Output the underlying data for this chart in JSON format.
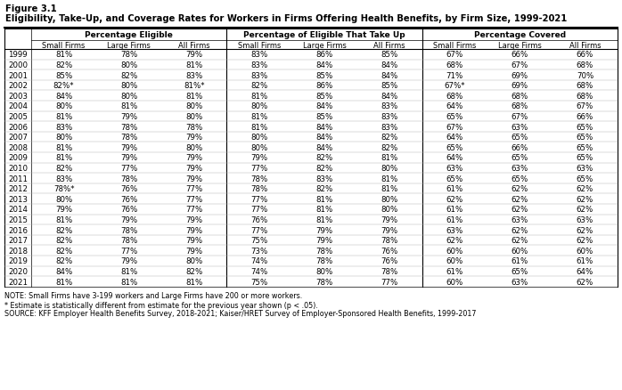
{
  "figure_label": "Figure 3.1",
  "title": "Eligibility, Take-Up, and Coverage Rates for Workers in Firms Offering Health Benefits, by Firm Size, 1999-2021",
  "years": [
    1999,
    2000,
    2001,
    2002,
    2003,
    2004,
    2005,
    2006,
    2007,
    2008,
    2009,
    2010,
    2011,
    2012,
    2013,
    2014,
    2015,
    2016,
    2017,
    2018,
    2019,
    2020,
    2021
  ],
  "data": {
    "eligible_small": [
      "81%",
      "82%",
      "85%",
      "82%*",
      "84%",
      "80%",
      "81%",
      "83%",
      "80%",
      "81%",
      "81%",
      "82%",
      "83%",
      "78%*",
      "80%",
      "79%",
      "81%",
      "82%",
      "82%",
      "82%",
      "82%",
      "84%",
      "81%"
    ],
    "eligible_large": [
      "78%",
      "80%",
      "82%",
      "80%",
      "80%",
      "81%",
      "79%",
      "78%",
      "78%",
      "79%",
      "79%",
      "77%",
      "78%",
      "76%",
      "76%",
      "76%",
      "79%",
      "78%",
      "78%",
      "77%",
      "79%",
      "81%",
      "81%"
    ],
    "eligible_all": [
      "79%",
      "81%",
      "83%",
      "81%*",
      "81%",
      "80%",
      "80%",
      "78%",
      "79%",
      "80%",
      "79%",
      "79%",
      "79%",
      "77%",
      "77%",
      "77%",
      "79%",
      "79%",
      "79%",
      "79%",
      "80%",
      "82%",
      "81%"
    ],
    "takeup_small": [
      "83%",
      "83%",
      "83%",
      "82%",
      "81%",
      "80%",
      "81%",
      "81%",
      "80%",
      "80%",
      "79%",
      "77%",
      "78%",
      "78%",
      "77%",
      "77%",
      "76%",
      "77%",
      "75%",
      "73%",
      "74%",
      "74%",
      "75%"
    ],
    "takeup_large": [
      "86%",
      "84%",
      "85%",
      "86%",
      "85%",
      "84%",
      "85%",
      "84%",
      "84%",
      "84%",
      "82%",
      "82%",
      "83%",
      "82%",
      "81%",
      "81%",
      "81%",
      "79%",
      "79%",
      "78%",
      "78%",
      "80%",
      "78%"
    ],
    "takeup_all": [
      "85%",
      "84%",
      "84%",
      "85%",
      "84%",
      "83%",
      "83%",
      "83%",
      "82%",
      "82%",
      "81%",
      "80%",
      "81%",
      "81%",
      "80%",
      "80%",
      "79%",
      "79%",
      "78%",
      "76%",
      "76%",
      "78%",
      "77%"
    ],
    "covered_small": [
      "67%",
      "68%",
      "71%",
      "67%*",
      "68%",
      "64%",
      "65%",
      "67%",
      "64%",
      "65%",
      "64%",
      "63%",
      "65%",
      "61%",
      "62%",
      "61%",
      "61%",
      "63%",
      "62%",
      "60%",
      "60%",
      "61%",
      "60%"
    ],
    "covered_large": [
      "66%",
      "67%",
      "69%",
      "69%",
      "68%",
      "68%",
      "67%",
      "63%",
      "65%",
      "66%",
      "65%",
      "63%",
      "65%",
      "62%",
      "62%",
      "62%",
      "63%",
      "62%",
      "62%",
      "60%",
      "61%",
      "65%",
      "63%"
    ],
    "covered_all": [
      "66%",
      "68%",
      "70%",
      "68%",
      "68%",
      "67%",
      "66%",
      "65%",
      "65%",
      "65%",
      "65%",
      "63%",
      "65%",
      "62%",
      "62%",
      "62%",
      "63%",
      "62%",
      "62%",
      "60%",
      "61%",
      "64%",
      "62%"
    ]
  },
  "note": "NOTE: Small Firms have 3-199 workers and Large Firms have 200 or more workers.",
  "footnote": "* Estimate is statistically different from estimate for the previous year shown (p < .05).",
  "source": "SOURCE: KFF Employer Health Benefits Survey, 2018-2021; Kaiser/HRET Survey of Employer-Sponsored Health Benefits, 1999-2017",
  "bg_color": "#ffffff",
  "text_color": "#000000"
}
